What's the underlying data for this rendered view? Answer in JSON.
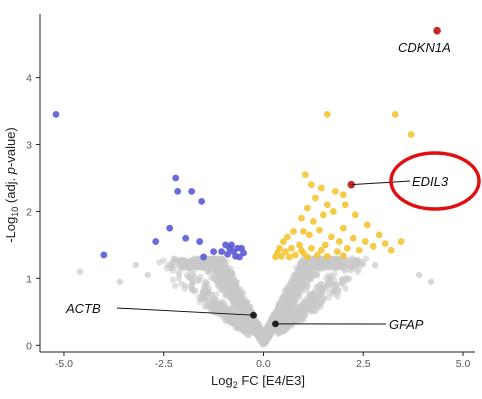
{
  "chart_data": {
    "type": "scatter",
    "title": "",
    "xlabel": "Log",
    "xlabel_sub": "2",
    "xlabel_rest": " FC [E4/E3]",
    "ylabel": "-Log",
    "ylabel_sub": "10",
    "ylabel_rest_1": " (adj. ",
    "ylabel_italic": "p",
    "ylabel_rest_2": "-value)",
    "xlim": [
      -5.6,
      5.3
    ],
    "ylim": [
      -0.1,
      4.95
    ],
    "x_ticks": [
      -5.0,
      -2.5,
      0.0,
      2.5,
      5.0
    ],
    "x_tick_labels": [
      "-5.0",
      "-2.5",
      "0.0",
      "2.5",
      "5.0"
    ],
    "y_ticks": [
      0,
      1,
      2,
      3,
      4
    ],
    "y_tick_labels": [
      "0",
      "1",
      "2",
      "3",
      "4"
    ],
    "grid": false,
    "colors": {
      "not_significant": "#c8c8c8",
      "down": "#5a5ad6",
      "up": "#f2c32a",
      "highlight": "#c01010",
      "labeled": "#111111",
      "annotation_circle": "#e01010"
    },
    "series": [
      {
        "values": [
          [
            -5.2,
            3.45
          ],
          [
            -4.0,
            1.35
          ],
          [
            -2.2,
            2.5
          ],
          [
            -2.15,
            2.3
          ],
          [
            -1.8,
            2.3
          ],
          [
            -1.55,
            2.15
          ],
          [
            -2.35,
            1.75
          ],
          [
            -1.95,
            1.6
          ],
          [
            -1.6,
            1.55
          ],
          [
            -2.7,
            1.55
          ],
          [
            -1.25,
            1.4
          ],
          [
            -1.05,
            1.4
          ],
          [
            -0.95,
            1.5
          ],
          [
            -0.85,
            1.45
          ],
          [
            -0.75,
            1.4
          ],
          [
            -0.65,
            1.45
          ],
          [
            -0.55,
            1.45
          ],
          [
            -0.5,
            1.38
          ],
          [
            -0.9,
            1.36
          ],
          [
            -0.7,
            1.33
          ],
          [
            -0.6,
            1.32
          ],
          [
            -1.5,
            1.32
          ],
          [
            -0.8,
            1.5
          ]
        ]
      },
      {
        "values": [
          [
            1.6,
            3.45
          ],
          [
            3.3,
            3.45
          ],
          [
            3.7,
            3.15
          ],
          [
            1.05,
            2.55
          ],
          [
            1.2,
            2.4
          ],
          [
            1.45,
            2.35
          ],
          [
            1.8,
            2.3
          ],
          [
            2.0,
            2.25
          ],
          [
            1.3,
            2.2
          ],
          [
            1.6,
            2.1
          ],
          [
            2.05,
            2.1
          ],
          [
            1.1,
            2.05
          ],
          [
            1.75,
            2.0
          ],
          [
            2.3,
            1.95
          ],
          [
            1.5,
            1.95
          ],
          [
            0.95,
            1.9
          ],
          [
            1.25,
            1.85
          ],
          [
            2.6,
            1.8
          ],
          [
            2.0,
            1.75
          ],
          [
            1.4,
            1.72
          ],
          [
            1.0,
            1.7
          ],
          [
            0.75,
            1.7
          ],
          [
            2.9,
            1.65
          ],
          [
            1.15,
            1.65
          ],
          [
            1.7,
            1.62
          ],
          [
            0.6,
            1.62
          ],
          [
            2.25,
            1.6
          ],
          [
            1.9,
            1.55
          ],
          [
            2.55,
            1.55
          ],
          [
            3.05,
            1.52
          ],
          [
            3.45,
            1.55
          ],
          [
            0.5,
            1.55
          ],
          [
            1.55,
            1.5
          ],
          [
            0.9,
            1.5
          ],
          [
            2.75,
            1.48
          ],
          [
            1.2,
            1.45
          ],
          [
            0.4,
            1.45
          ],
          [
            0.7,
            1.45
          ],
          [
            2.1,
            1.45
          ],
          [
            2.4,
            1.42
          ],
          [
            3.2,
            1.42
          ],
          [
            1.85,
            1.4
          ],
          [
            0.55,
            1.4
          ],
          [
            1.0,
            1.38
          ],
          [
            0.35,
            1.38
          ],
          [
            0.8,
            1.35
          ],
          [
            1.35,
            1.35
          ],
          [
            0.45,
            1.33
          ],
          [
            0.65,
            1.32
          ],
          [
            1.1,
            1.32
          ],
          [
            0.3,
            1.32
          ],
          [
            1.6,
            1.33
          ],
          [
            2.0,
            1.34
          ],
          [
            0.95,
            1.42
          ],
          [
            1.45,
            1.42
          ]
        ]
      },
      {
        "values": [
          [
            4.35,
            4.7
          ],
          [
            2.2,
            2.4
          ]
        ]
      },
      {
        "values": [
          [
            -0.25,
            0.45
          ],
          [
            0.3,
            0.32
          ]
        ]
      }
    ],
    "annotations": [
      {
        "label": "CDKN1A",
        "x": 4.35,
        "y": 4.7
      },
      {
        "label": "EDIL3",
        "x": 2.2,
        "y": 2.4
      },
      {
        "label": "ACTB",
        "x": -0.25,
        "y": 0.45
      },
      {
        "label": "GFAP",
        "x": 0.3,
        "y": 0.32
      }
    ]
  }
}
